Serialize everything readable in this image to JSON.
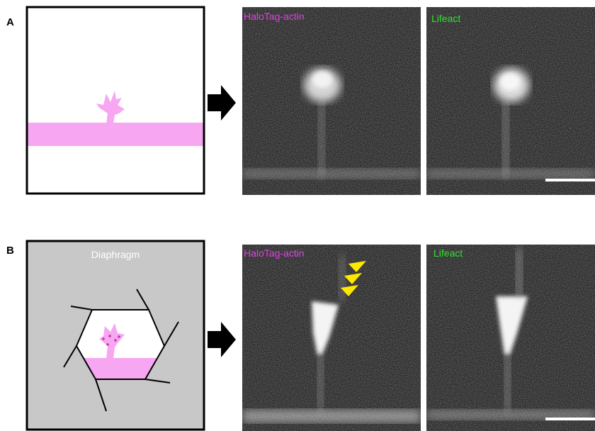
{
  "panels": [
    {
      "label": "A",
      "images": [
        {
          "label": "HaloTag-actin"
        },
        {
          "label": "Lifeact"
        }
      ]
    },
    {
      "label": "B",
      "schematic_label": "Diaphragm",
      "images": [
        {
          "label": "HaloTag-actin"
        },
        {
          "label": "Lifeact"
        }
      ]
    }
  ]
}
